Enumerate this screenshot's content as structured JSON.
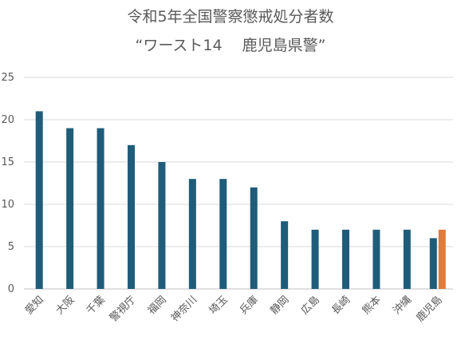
{
  "chart_data": {
    "type": "bar",
    "title": "令和5年全国警察懲戒処分者数",
    "subtitle": "“ワースト14　 鹿児島県警”",
    "categories": [
      "愛知",
      "大阪",
      "千葉",
      "警視庁",
      "福岡",
      "神奈川",
      "埼玉",
      "兵庫",
      "静岡",
      "広島",
      "長崎",
      "熊本",
      "沖縄",
      "鹿児島"
    ],
    "series": [
      {
        "values": [
          21,
          19,
          19,
          17,
          15,
          13,
          13,
          12,
          8,
          7,
          7,
          7,
          7,
          6
        ],
        "color": "#1f5c7a"
      },
      {
        "values": [
          null,
          null,
          null,
          null,
          null,
          null,
          null,
          null,
          null,
          null,
          null,
          null,
          null,
          7
        ],
        "color": "#e07b39"
      }
    ],
    "ylim": [
      0,
      25
    ],
    "yticks": [
      0,
      5,
      10,
      15,
      20,
      25
    ],
    "grid": true,
    "xlabel": "",
    "ylabel": ""
  }
}
